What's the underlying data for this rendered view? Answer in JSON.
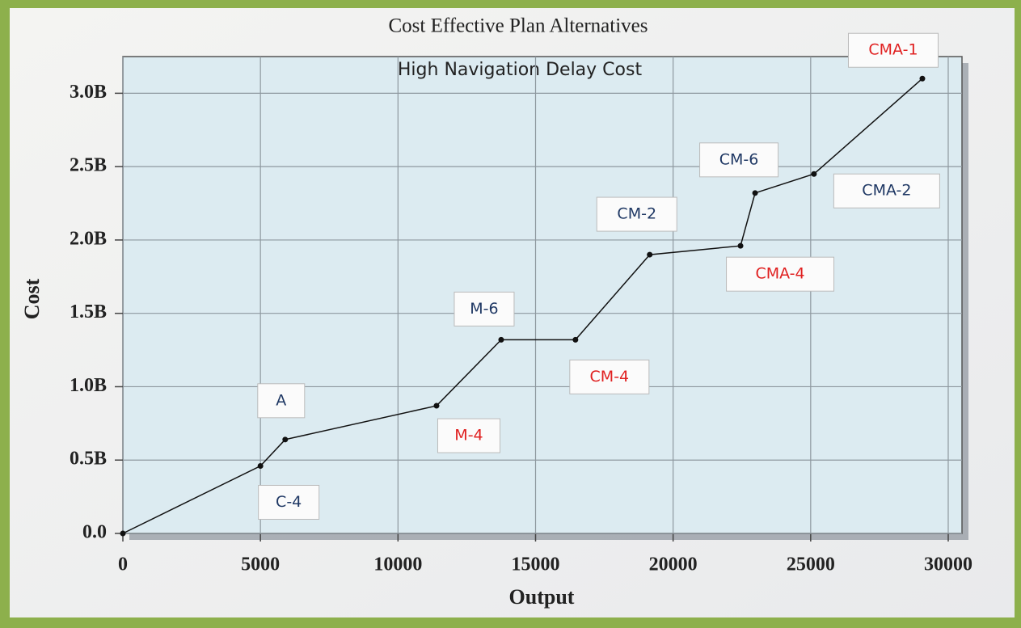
{
  "chart_data": {
    "type": "line",
    "title": "Cost Effective Plan Alternatives",
    "subtitle": "High Navigation Delay Cost",
    "x_label": "Output",
    "y_label": "Cost",
    "x": [
      0,
      5000,
      5900,
      11400,
      13750,
      16450,
      19150,
      22450,
      22980,
      25120,
      29060
    ],
    "series": [
      {
        "color": "#111111",
        "values": [
          0,
          460000000,
          640000000,
          870000000,
          1320000000,
          1320000000,
          1900000000,
          1960000000,
          2320000000,
          2450000000,
          3100000000
        ]
      }
    ],
    "point_labels": [
      null,
      "C-4",
      "A",
      "M-4",
      "M-6",
      "CM-4",
      "CM-2",
      "CMA-4",
      "CM-6",
      "CMA-2",
      "CMA-1"
    ],
    "point_label_colors": [
      null,
      "#1f3864",
      "#1f3864",
      "#e02020",
      "#1f3864",
      "#e02020",
      "#1f3864",
      "#e02020",
      "#1f3864",
      "#1f3864",
      "#e02020"
    ],
    "xlim": [
      0,
      30500
    ],
    "ylim": [
      0,
      3250000000
    ],
    "xticks": [
      0,
      5000,
      10000,
      15000,
      20000,
      25000,
      30000
    ],
    "yticks": [
      {
        "value": 0,
        "label": "0.0"
      },
      {
        "value": 500000000,
        "label": "0.5B"
      },
      {
        "value": 1000000000,
        "label": "1.0B"
      },
      {
        "value": 1500000000,
        "label": "1.5B"
      },
      {
        "value": 2000000000,
        "label": "2.0B"
      },
      {
        "value": 2500000000,
        "label": "2.5B"
      },
      {
        "value": 3000000000,
        "label": "3.0B"
      }
    ],
    "grid": true
  }
}
